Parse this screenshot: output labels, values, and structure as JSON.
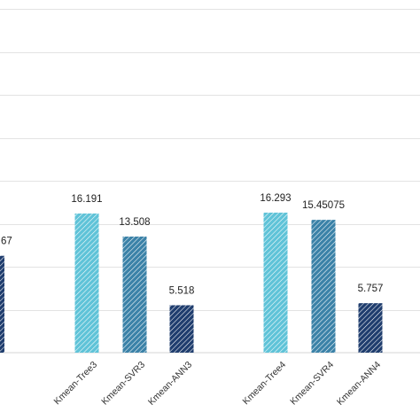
{
  "chart_data": {
    "type": "bar",
    "title": "",
    "xlabel": "",
    "ylabel": "",
    "ylim": [
      0,
      40
    ],
    "gridlines": [
      5,
      10,
      15,
      20,
      25,
      30,
      35,
      40
    ],
    "grid": true,
    "bars": [
      {
        "category": "",
        "value": 11.267,
        "label": "…67",
        "color": "#1f3d6e",
        "partial": true
      },
      {
        "category": "Kmean-Tree3",
        "value": 16.191,
        "label": "16.191",
        "color": "#5fc3d8"
      },
      {
        "category": "Kmean-SVR3",
        "value": 13.508,
        "label": "13.508",
        "color": "#3b82a8"
      },
      {
        "category": "Kmean-ANN3",
        "value": 5.518,
        "label": "5.518",
        "color": "#1f3d6e"
      },
      {
        "category": "Kmean-Tree4",
        "value": 16.293,
        "label": "16.293",
        "color": "#5fc3d8"
      },
      {
        "category": "Kmean-SVR4",
        "value": 15.45075,
        "label": "15.45075",
        "color": "#3b82a8"
      },
      {
        "category": "Kmean-ANN4",
        "value": 5.757,
        "label": "5.757",
        "color": "#1f3d6e"
      }
    ]
  }
}
